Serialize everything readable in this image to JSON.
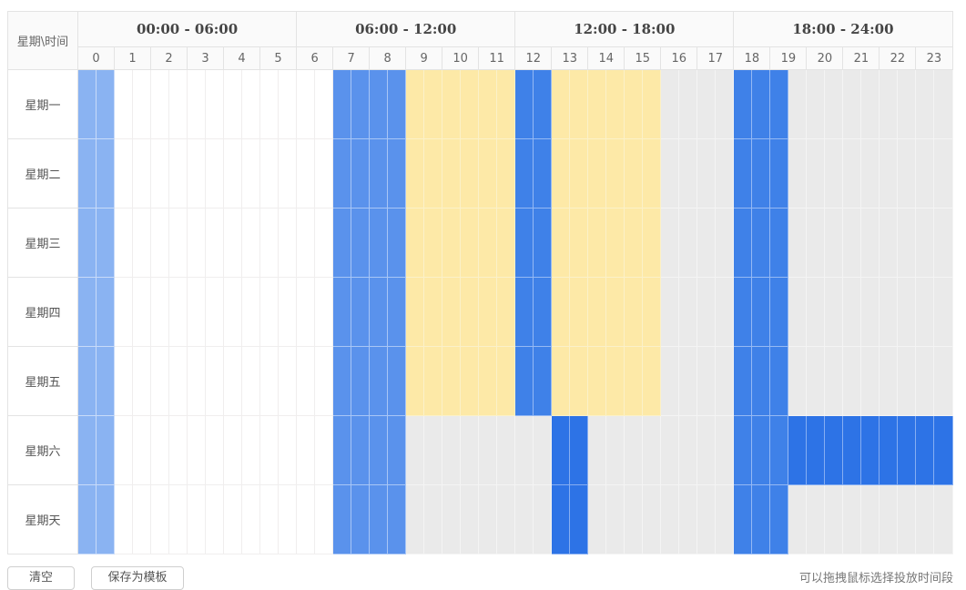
{
  "header": {
    "corner_label": "星期\\时间",
    "ranges": [
      "00:00 - 06:00",
      "06:00 - 12:00",
      "12:00 - 18:00",
      "18:00 - 24:00"
    ],
    "hours": [
      "0",
      "1",
      "2",
      "3",
      "4",
      "5",
      "6",
      "7",
      "8",
      "9",
      "10",
      "11",
      "12",
      "13",
      "14",
      "15",
      "16",
      "17",
      "18",
      "19",
      "20",
      "21",
      "22",
      "23"
    ]
  },
  "days": [
    {
      "label": "星期一",
      "slots": [
        3,
        3,
        0,
        0,
        0,
        0,
        0,
        0,
        0,
        0,
        0,
        0,
        0,
        0,
        4,
        4,
        4,
        4,
        2,
        2,
        2,
        2,
        2,
        2,
        5,
        5,
        2,
        2,
        2,
        2,
        2,
        2,
        1,
        1,
        1,
        1,
        5,
        5,
        5,
        1,
        1,
        1,
        1,
        1,
        1,
        1,
        1,
        1
      ]
    },
    {
      "label": "星期二",
      "slots": [
        3,
        3,
        0,
        0,
        0,
        0,
        0,
        0,
        0,
        0,
        0,
        0,
        0,
        0,
        4,
        4,
        4,
        4,
        2,
        2,
        2,
        2,
        2,
        2,
        5,
        5,
        2,
        2,
        2,
        2,
        2,
        2,
        1,
        1,
        1,
        1,
        5,
        5,
        5,
        1,
        1,
        1,
        1,
        1,
        1,
        1,
        1,
        1
      ]
    },
    {
      "label": "星期三",
      "slots": [
        3,
        3,
        0,
        0,
        0,
        0,
        0,
        0,
        0,
        0,
        0,
        0,
        0,
        0,
        4,
        4,
        4,
        4,
        2,
        2,
        2,
        2,
        2,
        2,
        5,
        5,
        2,
        2,
        2,
        2,
        2,
        2,
        1,
        1,
        1,
        1,
        5,
        5,
        5,
        1,
        1,
        1,
        1,
        1,
        1,
        1,
        1,
        1
      ]
    },
    {
      "label": "星期四",
      "slots": [
        3,
        3,
        0,
        0,
        0,
        0,
        0,
        0,
        0,
        0,
        0,
        0,
        0,
        0,
        4,
        4,
        4,
        4,
        2,
        2,
        2,
        2,
        2,
        2,
        5,
        5,
        2,
        2,
        2,
        2,
        2,
        2,
        1,
        1,
        1,
        1,
        5,
        5,
        5,
        1,
        1,
        1,
        1,
        1,
        1,
        1,
        1,
        1
      ]
    },
    {
      "label": "星期五",
      "slots": [
        3,
        3,
        0,
        0,
        0,
        0,
        0,
        0,
        0,
        0,
        0,
        0,
        0,
        0,
        4,
        4,
        4,
        4,
        2,
        2,
        2,
        2,
        2,
        2,
        5,
        5,
        2,
        2,
        2,
        2,
        2,
        2,
        1,
        1,
        1,
        1,
        5,
        5,
        5,
        1,
        1,
        1,
        1,
        1,
        1,
        1,
        1,
        1
      ]
    },
    {
      "label": "星期六",
      "slots": [
        3,
        3,
        0,
        0,
        0,
        0,
        0,
        0,
        0,
        0,
        0,
        0,
        0,
        0,
        4,
        4,
        4,
        4,
        1,
        1,
        1,
        1,
        1,
        1,
        1,
        1,
        6,
        6,
        1,
        1,
        1,
        1,
        1,
        1,
        1,
        1,
        5,
        5,
        5,
        6,
        6,
        6,
        6,
        6,
        6,
        6,
        6,
        6
      ]
    },
    {
      "label": "星期天",
      "slots": [
        3,
        3,
        0,
        0,
        0,
        0,
        0,
        0,
        0,
        0,
        0,
        0,
        0,
        0,
        4,
        4,
        4,
        4,
        1,
        1,
        1,
        1,
        1,
        1,
        1,
        1,
        6,
        6,
        1,
        1,
        1,
        1,
        1,
        1,
        1,
        1,
        5,
        5,
        5,
        1,
        1,
        1,
        1,
        1,
        1,
        1,
        1,
        1
      ]
    }
  ],
  "footer": {
    "clear_label": "清空",
    "save_template_label": "保存为模板",
    "hint": "可以拖拽鼠标选择投放时间段"
  }
}
